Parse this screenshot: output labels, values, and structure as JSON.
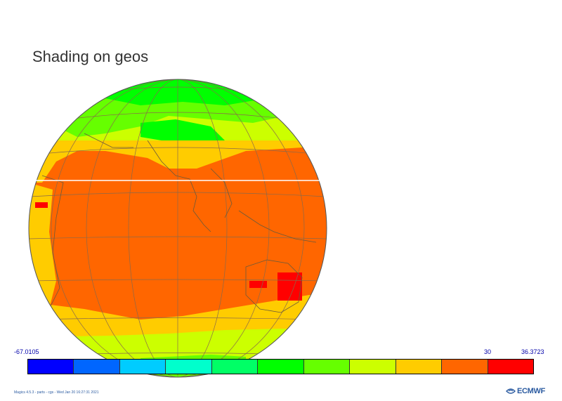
{
  "title": "Shading on geos",
  "colorbar": {
    "min_label": "-67.0105",
    "mid_label": "30",
    "max_label": "36.3723",
    "colors": [
      "#0000ff",
      "#0066ff",
      "#00ccff",
      "#00ffcc",
      "#00ff66",
      "#00ff00",
      "#66ff00",
      "#ccff00",
      "#ffcc00",
      "#ff6600",
      "#ff0000"
    ]
  },
  "footer": "Magics 4.5.3 - parts - cgs - Wed Jan 20 16:27:31 2021",
  "logo": {
    "text": "ECMWF",
    "icon": "ecmwf-logo-icon"
  },
  "map": {
    "projection": "geos",
    "field_colors": {
      "hot": "#ff6600",
      "hottest": "#ff0000",
      "warm": "#ffcc00",
      "mild": "#ccff00",
      "cool": "#66ff00",
      "cold": "#00ff00"
    }
  }
}
